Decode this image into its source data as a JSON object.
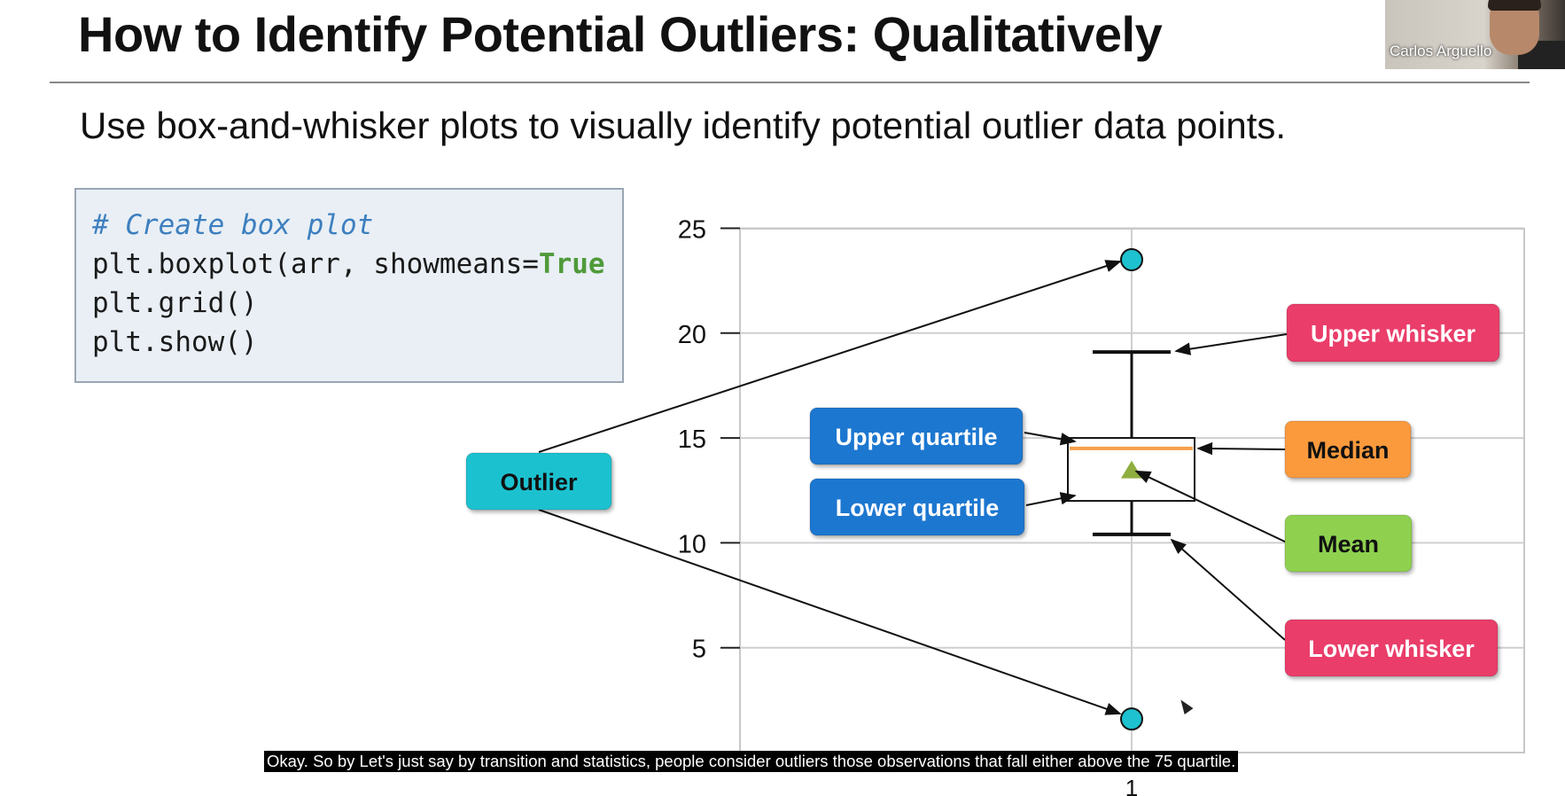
{
  "slide": {
    "title": "How to Identify Potential Outliers: Qualitatively",
    "subtitle": "Use box-and-whisker plots to visually identify potential outlier data points."
  },
  "code": {
    "comment": "# Create box plot",
    "line2_prefix": "plt.boxplot(arr, showmeans=",
    "line2_keyword": "True",
    "line3": "plt.grid()",
    "line4": "plt.show()"
  },
  "video": {
    "participant_name": "Carlos Arguello"
  },
  "caption": {
    "text": "Okay. So by Let's just say by transition and statistics, people consider outliers those observations that fall either above the 75 quartile."
  },
  "labels": {
    "outlier": "Outlier",
    "upper_quartile": "Upper quartile",
    "lower_quartile": "Lower quartile",
    "upper_whisker": "Upper whisker",
    "median": "Median",
    "mean": "Mean",
    "lower_whisker": "Lower whisker"
  },
  "colors": {
    "outlier_label": "#1ec1cf",
    "quartile_label": "#1f77d0",
    "whisker_label": "#ea3d6a",
    "median_label": "#fb9a3e",
    "mean_label": "#8fd14f",
    "median_line": "#f5a04a",
    "mean_marker": "#8fae3f",
    "flier": "#1ec1cf"
  },
  "chart_data": {
    "type": "box",
    "categories": [
      "1"
    ],
    "yticks": [
      5,
      10,
      15,
      20,
      25
    ],
    "ylim": [
      0,
      26
    ],
    "grid": true,
    "box": {
      "whisker_low": 10.4,
      "q1": 12.0,
      "median": 14.5,
      "mean": 13.5,
      "q3": 15.0,
      "whisker_high": 19.1
    },
    "fliers": [
      23.5,
      1.6
    ]
  }
}
